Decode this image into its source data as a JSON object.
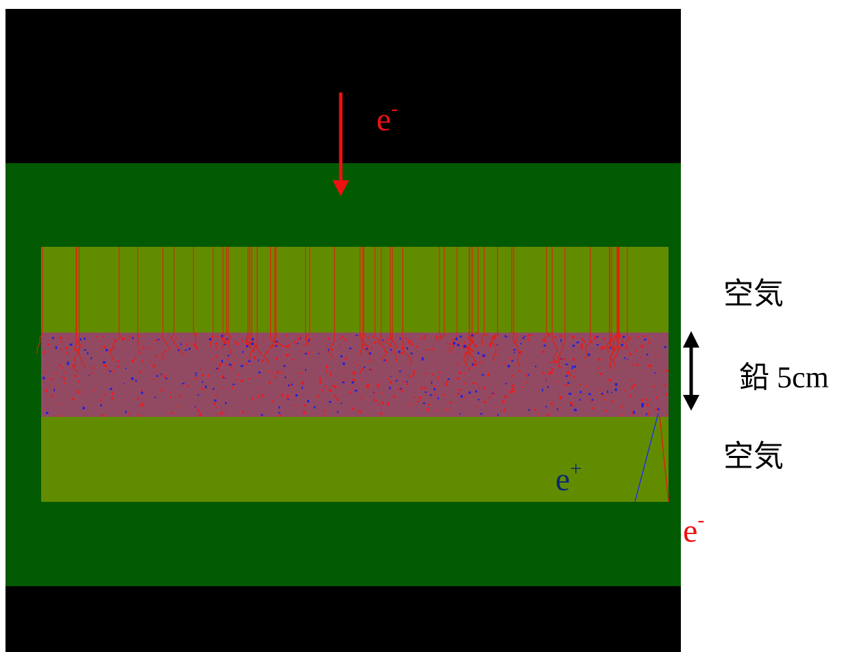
{
  "beam_label": {
    "base": "e",
    "sup": "-"
  },
  "upper_layer_label": "空気",
  "lead_label": "鉛 5cm",
  "lower_layer_label": "空気",
  "positron_label": {
    "base": "e",
    "sup": "+"
  },
  "electron_out_label": {
    "base": "e",
    "sup": "-"
  }
}
